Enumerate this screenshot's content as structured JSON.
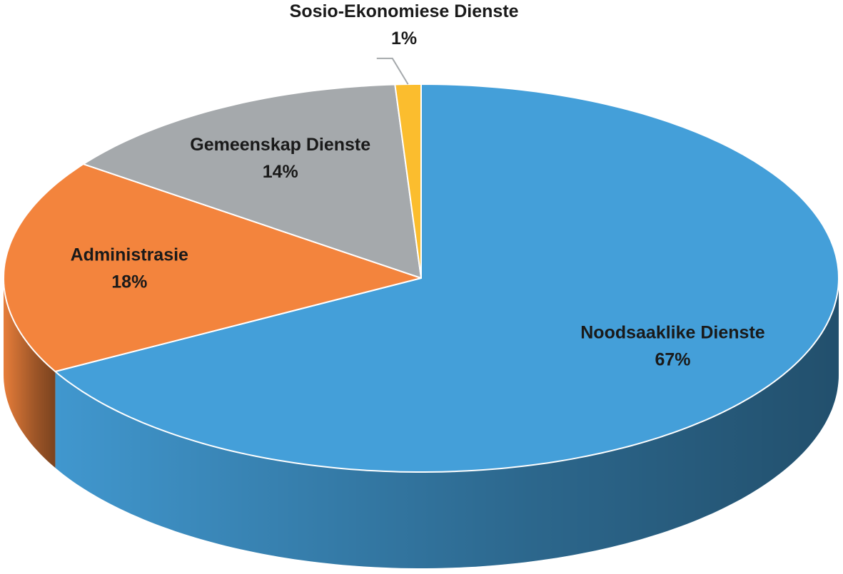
{
  "chart_data": {
    "type": "pie",
    "three_d": true,
    "categories": [
      "Noodsaaklike Dienste",
      "Administrasie",
      "Gemeenskap Dienste",
      "Sosio-Ekonomiese Dienste"
    ],
    "values": [
      67,
      18,
      14,
      1
    ],
    "value_labels": [
      "67%",
      "18%",
      "14%",
      "1%"
    ],
    "colors": [
      "#449fd9",
      "#f3843d",
      "#a5a9ac",
      "#fbbd2e"
    ]
  }
}
